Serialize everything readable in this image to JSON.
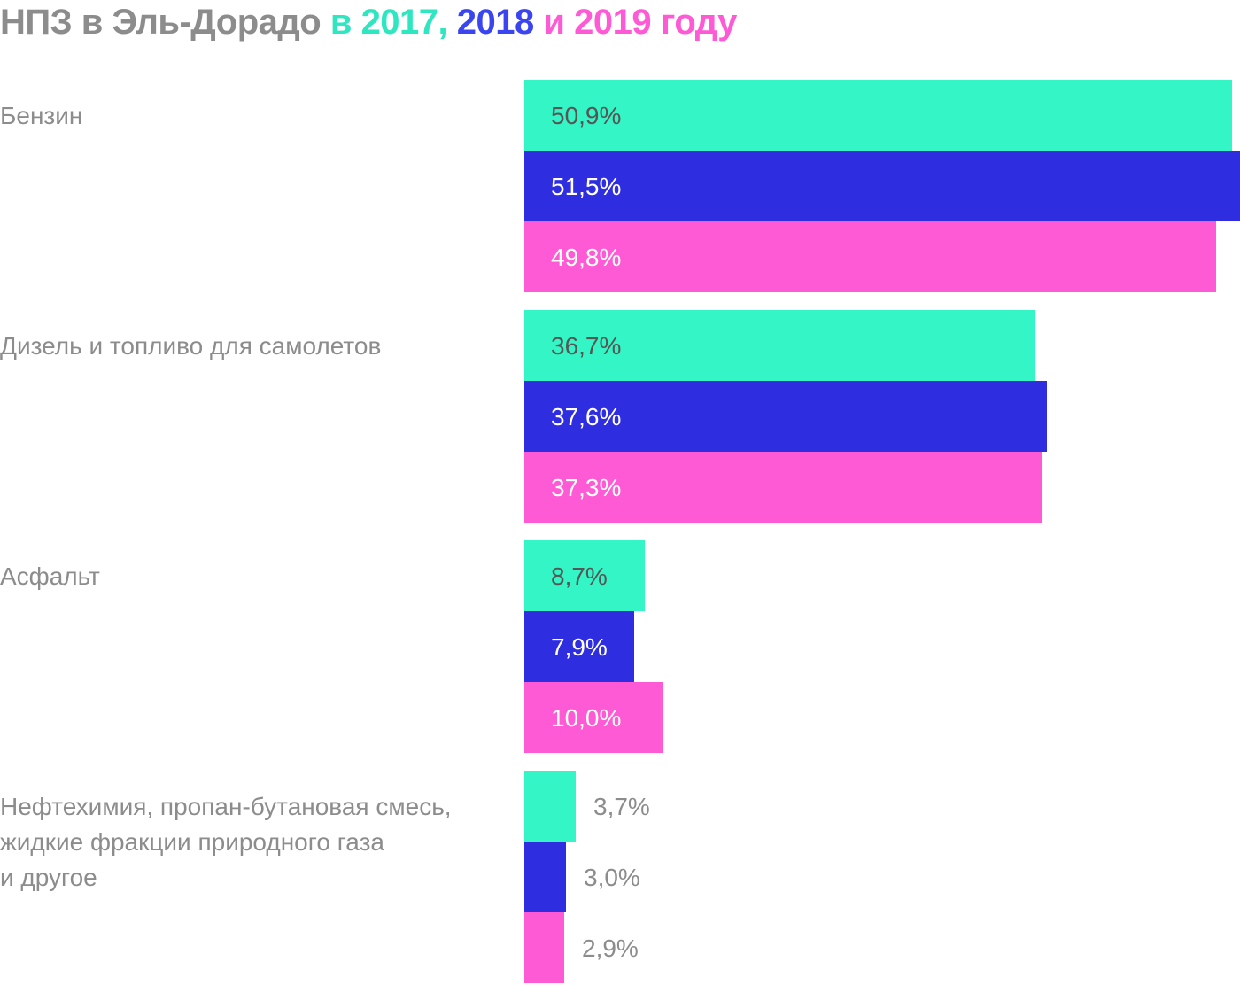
{
  "title": {
    "main": "НПЗ в Эль-Дорадо",
    "connector": "в",
    "year1": "2017,",
    "year2": "2018",
    "and": "и",
    "year3": "2019",
    "suffix": "году"
  },
  "colors": {
    "title_gray": "#8c8c8c",
    "year1": "#2ee6c0",
    "year2": "#3a45f0",
    "year3": "#ff5ad5",
    "label_gray": "#8c8c8c",
    "value_on_light": "#555555",
    "value_on_dark": "#ffffff",
    "value_outside": "#8c8c8c"
  },
  "chart_data": {
    "type": "bar",
    "orientation": "horizontal",
    "title": "НПЗ в Эль-Дорадо в 2017, 2018 и 2019 году",
    "categories": [
      [
        "Бензин"
      ],
      [
        "Дизель и топливо для самолетов"
      ],
      [
        "Асфальт"
      ],
      [
        "Нефтехимия, пропан-бутановая смесь,",
        "жидкие фракции природного газа",
        "и другое"
      ]
    ],
    "series": [
      {
        "name": "2017",
        "color": "#33f5c5",
        "values": [
          50.9,
          36.7,
          8.7,
          3.7
        ],
        "labels": [
          "50,9%",
          "36,7%",
          "8,7%",
          "3,7%"
        ]
      },
      {
        "name": "2018",
        "color": "#2e2ee0",
        "values": [
          51.5,
          37.6,
          7.9,
          3.0
        ],
        "labels": [
          "51,5%",
          "37,6%",
          "7,9%",
          "3,0%"
        ]
      },
      {
        "name": "2019",
        "color": "#ff5ad5",
        "values": [
          49.8,
          37.3,
          10.0,
          2.9
        ],
        "labels": [
          "49,8%",
          "37,3%",
          "10,0%",
          "2,9%"
        ]
      }
    ],
    "xlim": [
      0,
      51.5
    ],
    "grid": false,
    "legend": "in title"
  }
}
